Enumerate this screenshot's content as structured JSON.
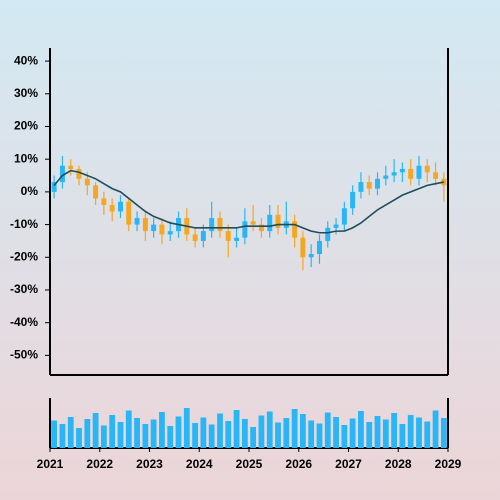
{
  "chart_data": {
    "type": "candlestick",
    "x": [
      2021.083,
      2021.25,
      2021.417,
      2021.583,
      2021.75,
      2021.917,
      2022.083,
      2022.25,
      2022.417,
      2022.583,
      2022.75,
      2022.917,
      2023.083,
      2023.25,
      2023.417,
      2023.583,
      2023.75,
      2023.917,
      2024.083,
      2024.25,
      2024.417,
      2024.583,
      2024.75,
      2024.917,
      2025.083,
      2025.25,
      2025.417,
      2025.583,
      2025.75,
      2025.917,
      2026.083,
      2026.25,
      2026.417,
      2026.583,
      2026.75,
      2026.917,
      2027.083,
      2027.25,
      2027.417,
      2027.583,
      2027.75,
      2027.917,
      2028.083,
      2028.25,
      2028.417,
      2028.583,
      2028.75,
      2028.917
    ],
    "open": [
      0,
      3,
      8,
      7,
      4,
      2,
      -2,
      -4,
      -6,
      -3,
      -10,
      -8,
      -12,
      -10,
      -13,
      -12,
      -8,
      -13,
      -15,
      -12,
      -8,
      -12,
      -15,
      -14,
      -9,
      -10,
      -12,
      -7,
      -11,
      -9,
      -14,
      -20,
      -19,
      -15,
      -11,
      -10,
      -5,
      0,
      3,
      1,
      4,
      5,
      6,
      7,
      4,
      8,
      6,
      4
    ],
    "high": [
      5,
      11,
      10,
      8,
      6,
      3,
      0,
      -2,
      -1,
      -2,
      -6,
      -6,
      -8,
      -8,
      -9,
      -6,
      -5,
      -11,
      -10,
      -3,
      -6,
      -10,
      -11,
      -5,
      -4,
      -8,
      -4,
      -4,
      -3,
      -7,
      -12,
      -16,
      -13,
      -9,
      -8,
      -3,
      2,
      6,
      5,
      6,
      8,
      10,
      9,
      10,
      11,
      10,
      9,
      6
    ],
    "low": [
      -2,
      1,
      5,
      2,
      -1,
      -4,
      -7,
      -9,
      -8,
      -12,
      -12,
      -15,
      -14,
      -16,
      -15,
      -14,
      -15,
      -17,
      -17,
      -14,
      -14,
      -20,
      -17,
      -16,
      -12,
      -14,
      -14,
      -13,
      -13,
      -17,
      -24,
      -23,
      -22,
      -17,
      -13,
      -12,
      -7,
      -2,
      -1,
      -1,
      2,
      3,
      3,
      2,
      2,
      3,
      2,
      -3
    ],
    "close": [
      3,
      8,
      7,
      4,
      2,
      -2,
      -4,
      -6,
      -3,
      -10,
      -8,
      -12,
      -10,
      -13,
      -12,
      -8,
      -13,
      -15,
      -12,
      -8,
      -12,
      -15,
      -14,
      -9,
      -10,
      -12,
      -7,
      -11,
      -9,
      -14,
      -20,
      -19,
      -15,
      -11,
      -10,
      -5,
      0,
      3,
      1,
      4,
      5,
      6,
      7,
      4,
      8,
      6,
      4,
      2
    ],
    "moving_average": [
      2,
      5,
      6.5,
      6,
      5,
      4,
      2.5,
      1,
      0,
      -2,
      -4,
      -6,
      -7.5,
      -8.5,
      -9.5,
      -10,
      -10.5,
      -11,
      -11,
      -11,
      -11,
      -11,
      -11,
      -10.5,
      -10.5,
      -10.5,
      -10.5,
      -10,
      -10,
      -10,
      -11,
      -12,
      -12.5,
      -12.5,
      -12,
      -12,
      -11,
      -9.5,
      -7.5,
      -5.5,
      -4,
      -2.5,
      -1,
      0,
      1,
      2,
      2.5,
      3
    ],
    "volume": [
      55,
      48,
      62,
      40,
      58,
      70,
      45,
      66,
      52,
      75,
      60,
      48,
      57,
      72,
      44,
      63,
      80,
      50,
      61,
      47,
      69,
      54,
      76,
      58,
      42,
      65,
      73,
      51,
      60,
      78,
      68,
      55,
      49,
      71,
      62,
      46,
      59,
      74,
      52,
      64,
      57,
      70,
      48,
      66,
      61,
      53,
      75,
      60
    ],
    "up_color": "#29b6f6",
    "down_color": "#f5a623",
    "ma_color": "#1f4e5a",
    "volume_color": "#29b6f6",
    "xlim": [
      2021,
      2029
    ],
    "xticks": [
      2021,
      2022,
      2023,
      2024,
      2025,
      2026,
      2027,
      2028,
      2029
    ],
    "ylim": [
      -56,
      44
    ],
    "yticks": [
      {
        "value": 40,
        "label": "40%"
      },
      {
        "value": 30,
        "label": "30%"
      },
      {
        "value": 20,
        "label": "20%"
      },
      {
        "value": 10,
        "label": "10%"
      },
      {
        "value": 0,
        "label": "0%"
      },
      {
        "value": -10,
        "label": "-10%"
      },
      {
        "value": -20,
        "label": "-20%"
      },
      {
        "value": -30,
        "label": "-30%"
      },
      {
        "value": -40,
        "label": "-40%"
      },
      {
        "value": -50,
        "label": "-50%"
      }
    ],
    "volume_ylim": [
      0,
      100
    ]
  }
}
